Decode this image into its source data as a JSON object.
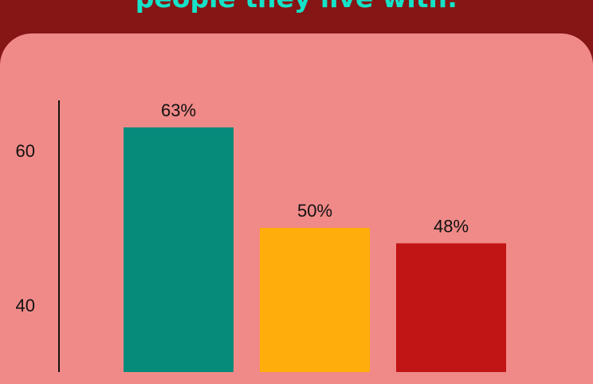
{
  "chart_data": {
    "type": "bar",
    "title": "people they live with:",
    "categories": [
      "",
      "",
      ""
    ],
    "values": [
      63,
      50,
      48
    ],
    "value_labels": [
      "63%",
      "50%",
      "48%"
    ],
    "colors": [
      "#068a7a",
      "#ffad0a",
      "#c11414"
    ],
    "y_ticks": [
      {
        "value": 40,
        "label": "40"
      },
      {
        "value": 60,
        "label": "60"
      }
    ],
    "ylim": [
      20,
      70
    ],
    "xlabel": "",
    "ylabel": "",
    "grid": false
  },
  "colors": {
    "header_bg": "#861515",
    "panel_bg": "#f08a88",
    "title": "#14e3c8"
  }
}
